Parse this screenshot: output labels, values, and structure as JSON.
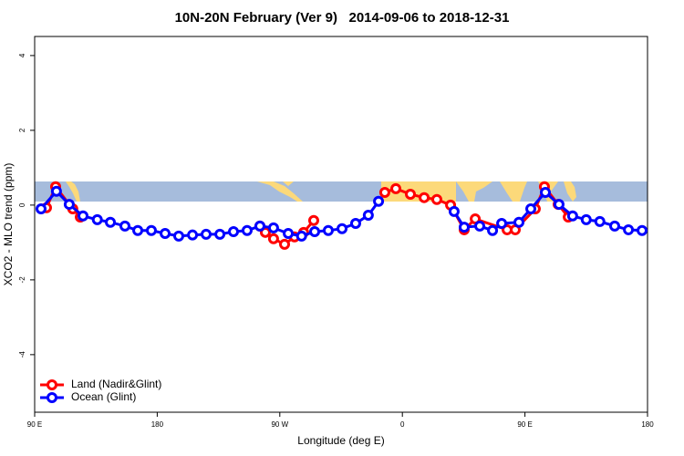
{
  "chart_data": {
    "type": "line",
    "title": "10N-20N February (Ver 9)   2014-09-06 to 2018-12-31",
    "x_label": "Longitude (deg E)",
    "y_label": "XCO2 - MLO trend (ppm)",
    "xlim": [
      90,
      540
    ],
    "xticks": [
      {
        "value": 90,
        "label": "90 E"
      },
      180,
      {
        "value": 270,
        "label": "90 W"
      },
      {
        "value": 360,
        "label": "0"
      },
      {
        "value": 450,
        "label": "90 E"
      },
      {
        "value": 540,
        "label": "180"
      }
    ],
    "ylim": [
      -5.54,
      4.51
    ],
    "yticks": [
      -4,
      -2,
      0,
      2,
      4
    ],
    "legend": "bottom-left",
    "series": [
      {
        "name": "Land (Nadir&Glint)",
        "color": "#ff0000",
        "x": [
          98.7,
          105.4,
          118,
          123.5,
          null,
          255.4,
          259.4,
          265.4,
          273.5,
          280.8,
          287.5,
          294.9,
          null,
          347.1,
          355.2,
          365.9,
          376,
          385.3,
          395.4,
          405.4,
          413.5,
          436.9,
          442.9,
          457.6,
          464.3,
          474.4,
          481.8
        ],
        "values": [
          -0.07,
          0.49,
          -0.1,
          -0.32,
          null,
          -0.56,
          -0.73,
          -0.9,
          -1.05,
          -0.85,
          -0.73,
          -0.41,
          null,
          0.34,
          0.44,
          0.29,
          0.2,
          0.15,
          0.0,
          -0.66,
          -0.37,
          -0.66,
          -0.66,
          -0.1,
          0.49,
          0.02,
          -0.32
        ]
      },
      {
        "name": "Ocean (Glint)",
        "color": "#0000ff",
        "x": [
          94.7,
          106,
          115.4,
          125.5,
          136,
          145.6,
          156.3,
          165.7,
          175.7,
          185.8,
          195.8,
          205.9,
          215.9,
          226,
          236,
          246,
          255.4,
          265.4,
          276.2,
          286,
          295.6,
          305.6,
          315.7,
          325.7,
          335,
          342.5,
          null,
          398,
          405.4,
          416.8,
          426.2,
          432.9,
          445.6,
          454.3,
          465,
          475,
          485,
          495,
          505,
          515.9,
          526,
          536
        ],
        "values": [
          -0.1,
          0.37,
          0.02,
          -0.29,
          -0.39,
          -0.46,
          -0.56,
          -0.68,
          -0.68,
          -0.76,
          -0.83,
          -0.8,
          -0.78,
          -0.78,
          -0.71,
          -0.68,
          -0.56,
          -0.61,
          -0.76,
          -0.83,
          -0.71,
          -0.68,
          -0.63,
          -0.49,
          -0.27,
          0.1,
          null,
          -0.17,
          -0.59,
          -0.56,
          -0.68,
          -0.49,
          -0.46,
          -0.1,
          0.34,
          0.02,
          -0.29,
          -0.39,
          -0.44,
          -0.56,
          -0.66,
          -0.68
        ]
      }
    ]
  }
}
